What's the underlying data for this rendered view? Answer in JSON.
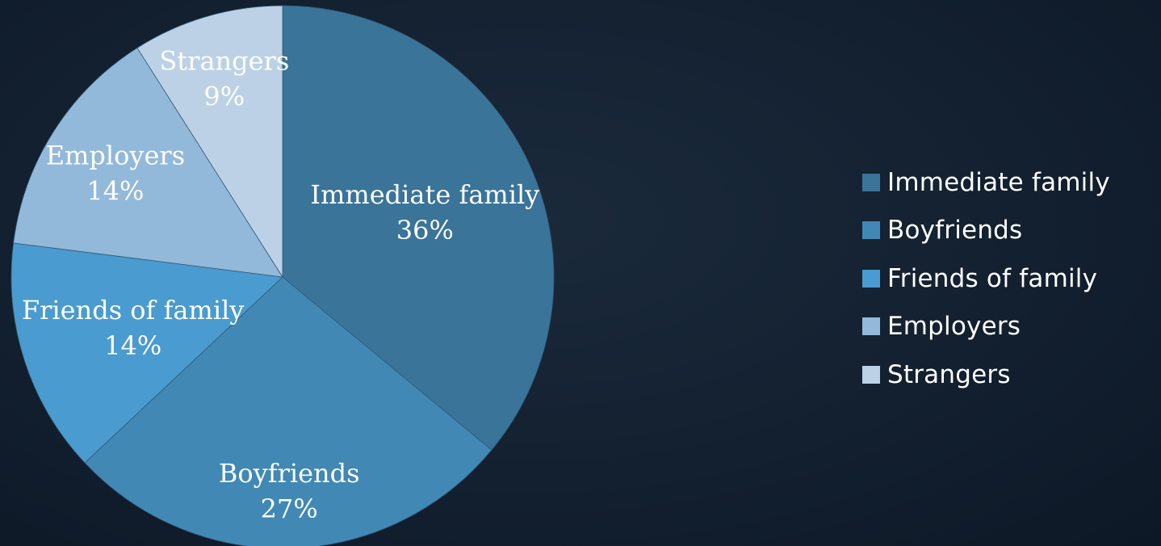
{
  "chart_data": {
    "type": "pie",
    "title": "",
    "categories": [
      "Immediate family",
      "Boyfriends",
      "Friends of family",
      "Employers",
      "Strangers"
    ],
    "values": [
      36,
      27,
      14,
      14,
      9
    ],
    "value_labels": [
      "36%",
      "27%",
      "14%",
      "14%",
      "9%"
    ],
    "colors": [
      "#3a7499",
      "#4188b5",
      "#4a9bcf",
      "#93b9da",
      "#bdd1e6"
    ],
    "start": "top, clockwise",
    "legend_position": "right"
  }
}
